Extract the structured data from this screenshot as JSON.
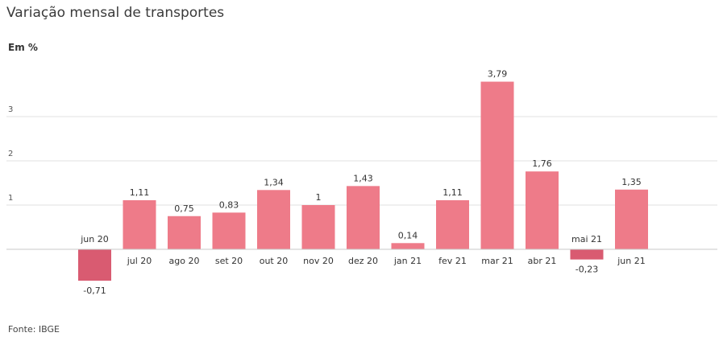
{
  "title": "Variação mensal de transportes",
  "unit_label": "Em %",
  "source": "Fonte: IBGE",
  "colors": {
    "positive": "#ee7b89",
    "negative": "#d95b71",
    "grid": "#e2e2e2",
    "baseline": "#c8c8c8"
  },
  "chart_data": {
    "type": "bar",
    "title": "Variação mensal de transportes",
    "ylabel": "Em %",
    "xlabel": "",
    "grid": true,
    "ylim": [
      -0.71,
      3.79
    ],
    "yticks": [
      1,
      2,
      3
    ],
    "categories": [
      "jun 20",
      "jul 20",
      "ago 20",
      "set 20",
      "out 20",
      "nov 20",
      "dez 20",
      "jan 21",
      "fev 21",
      "mar 21",
      "abr 21",
      "mai 21",
      "jun 21"
    ],
    "values": [
      -0.71,
      1.11,
      0.75,
      0.83,
      1.34,
      1,
      1.43,
      0.14,
      1.11,
      3.79,
      1.76,
      -0.23,
      1.35
    ],
    "labels": [
      "-0,71",
      "1,11",
      "0,75",
      "0,83",
      "1,34",
      "1",
      "1,43",
      "0,14",
      "1,11",
      "3,79",
      "1,76",
      "-0,23",
      "1,35"
    ]
  }
}
